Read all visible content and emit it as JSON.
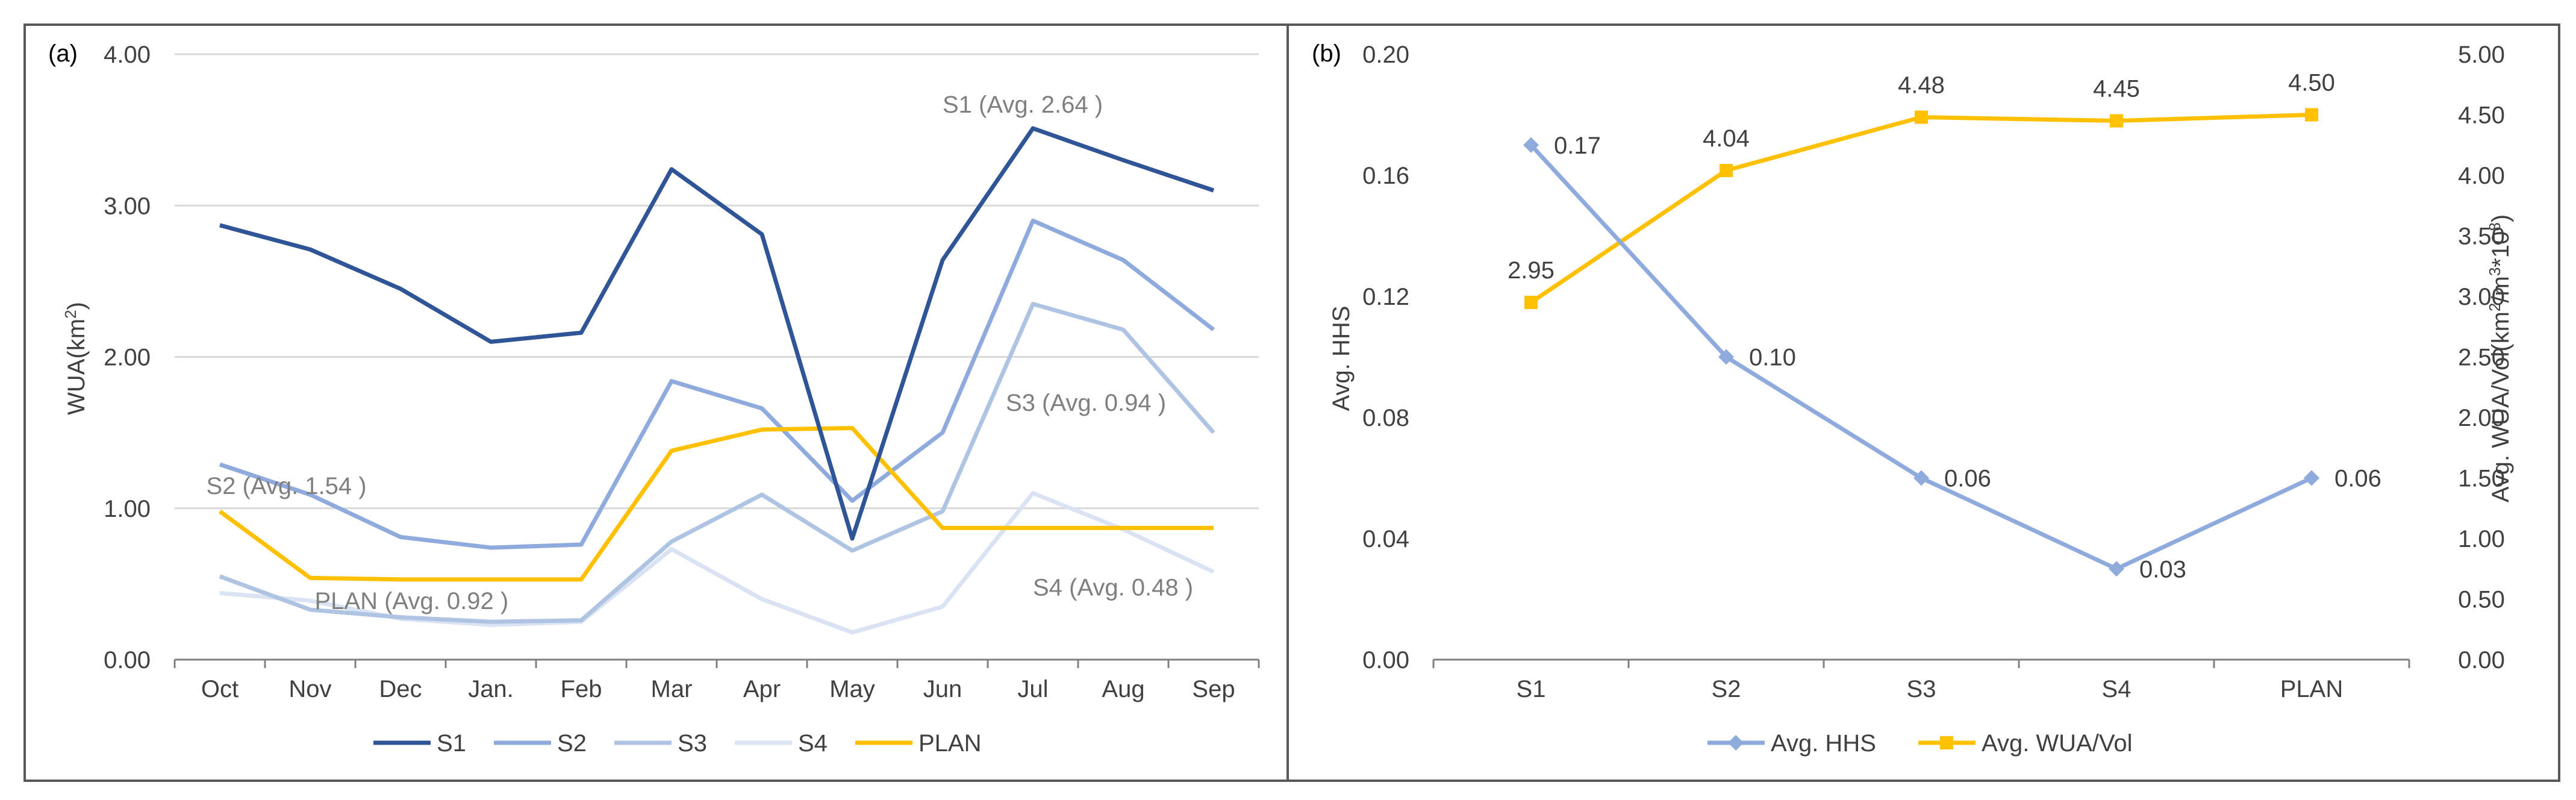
{
  "colors": {
    "S1": "#2f5597",
    "S2": "#8faadc",
    "S3": "#afc3e3",
    "S4": "#dae3f3",
    "PLAN": "#ffc000",
    "hhs": "#8faadc",
    "wua": "#ffc000",
    "grid": "#d9d9d9",
    "axis": "#808080",
    "text": "#404040",
    "annotation": "#7f7f7f",
    "frame": "#595959"
  },
  "chart_data": [
    {
      "panel_label": "(a)",
      "type": "line",
      "ylabel_main": "WUA(km",
      "ylabel_sup": "2",
      "ylabel_tail": ")",
      "ylim": [
        0,
        4
      ],
      "yticks": [
        "0.00",
        "1.00",
        "2.00",
        "3.00",
        "4.00"
      ],
      "categories": [
        "Oct",
        "Nov",
        "Dec",
        "Jan.",
        "Feb",
        "Mar",
        "Apr",
        "May",
        "Jun",
        "Jul",
        "Aug",
        "Sep"
      ],
      "grid": true,
      "legend_position": "bottom",
      "series": [
        {
          "name": "S1",
          "values": [
            2.87,
            2.71,
            2.45,
            2.1,
            2.16,
            3.24,
            2.81,
            0.8,
            2.64,
            3.51,
            3.3,
            3.1
          ]
        },
        {
          "name": "S2",
          "values": [
            1.29,
            1.09,
            0.81,
            0.74,
            0.76,
            1.84,
            1.66,
            1.05,
            1.5,
            2.9,
            2.64,
            2.18
          ]
        },
        {
          "name": "S3",
          "values": [
            0.55,
            0.33,
            0.28,
            0.25,
            0.26,
            0.78,
            1.09,
            0.72,
            0.98,
            2.35,
            2.18,
            1.5
          ]
        },
        {
          "name": "S4",
          "values": [
            0.44,
            0.39,
            0.27,
            0.23,
            0.25,
            0.73,
            0.4,
            0.18,
            0.35,
            1.1,
            0.86,
            0.58
          ]
        },
        {
          "name": "PLAN",
          "values": [
            0.98,
            0.54,
            0.53,
            0.53,
            0.53,
            1.38,
            1.52,
            1.53,
            0.87,
            0.87,
            0.87,
            0.87
          ]
        }
      ],
      "annotations": [
        {
          "text": "S1 (Avg. 2.64 )",
          "x": "Jun",
          "y": 3.67
        },
        {
          "text": "S2 (Avg. 1.54 )",
          "x": "Oct",
          "y": 1.15
        },
        {
          "text": "S3 (Avg. 0.94 )",
          "x": "Jul",
          "y": 1.7
        },
        {
          "text": "S4 (Avg. 0.48 )",
          "x": "Jul",
          "y": 0.48
        },
        {
          "text": "PLAN (Avg. 0.92 )",
          "x": "Nov",
          "y": 0.39
        }
      ]
    },
    {
      "panel_label": "(b)",
      "type": "line",
      "categories": [
        "S1",
        "S2",
        "S3",
        "S4",
        "PLAN"
      ],
      "ylabel_left": "Avg. HHS",
      "ylabel_right_main": "Avg. WUA/Vol(km",
      "ylabel_right_sup1": "2",
      "ylabel_right_mid": "/m",
      "ylabel_right_sup2": "3",
      "ylabel_right_mid2": "*10",
      "ylabel_right_sup3": "8",
      "ylabel_right_tail": ")",
      "ylim_left": [
        0,
        0.2
      ],
      "yticks_left": [
        "0.00",
        "0.04",
        "0.08",
        "0.12",
        "0.16",
        "0.20"
      ],
      "ylim_right": [
        0,
        5
      ],
      "yticks_right": [
        "0.00",
        "0.50",
        "1.00",
        "1.50",
        "2.00",
        "2.50",
        "3.00",
        "3.50",
        "4.00",
        "4.50",
        "5.00"
      ],
      "grid": false,
      "legend_position": "bottom",
      "series": [
        {
          "name": "Avg. HHS",
          "axis": "left",
          "marker": "diamond",
          "values": [
            0.17,
            0.1,
            0.06,
            0.03,
            0.06
          ],
          "labels": [
            "0.17",
            "0.10",
            "0.06",
            "0.03",
            "0.06"
          ]
        },
        {
          "name": "Avg. WUA/Vol",
          "axis": "right",
          "marker": "square",
          "values": [
            2.95,
            4.04,
            4.48,
            4.45,
            4.5
          ],
          "labels": [
            "2.95",
            "4.04",
            "4.48",
            "4.45",
            "4.50"
          ]
        }
      ]
    }
  ]
}
